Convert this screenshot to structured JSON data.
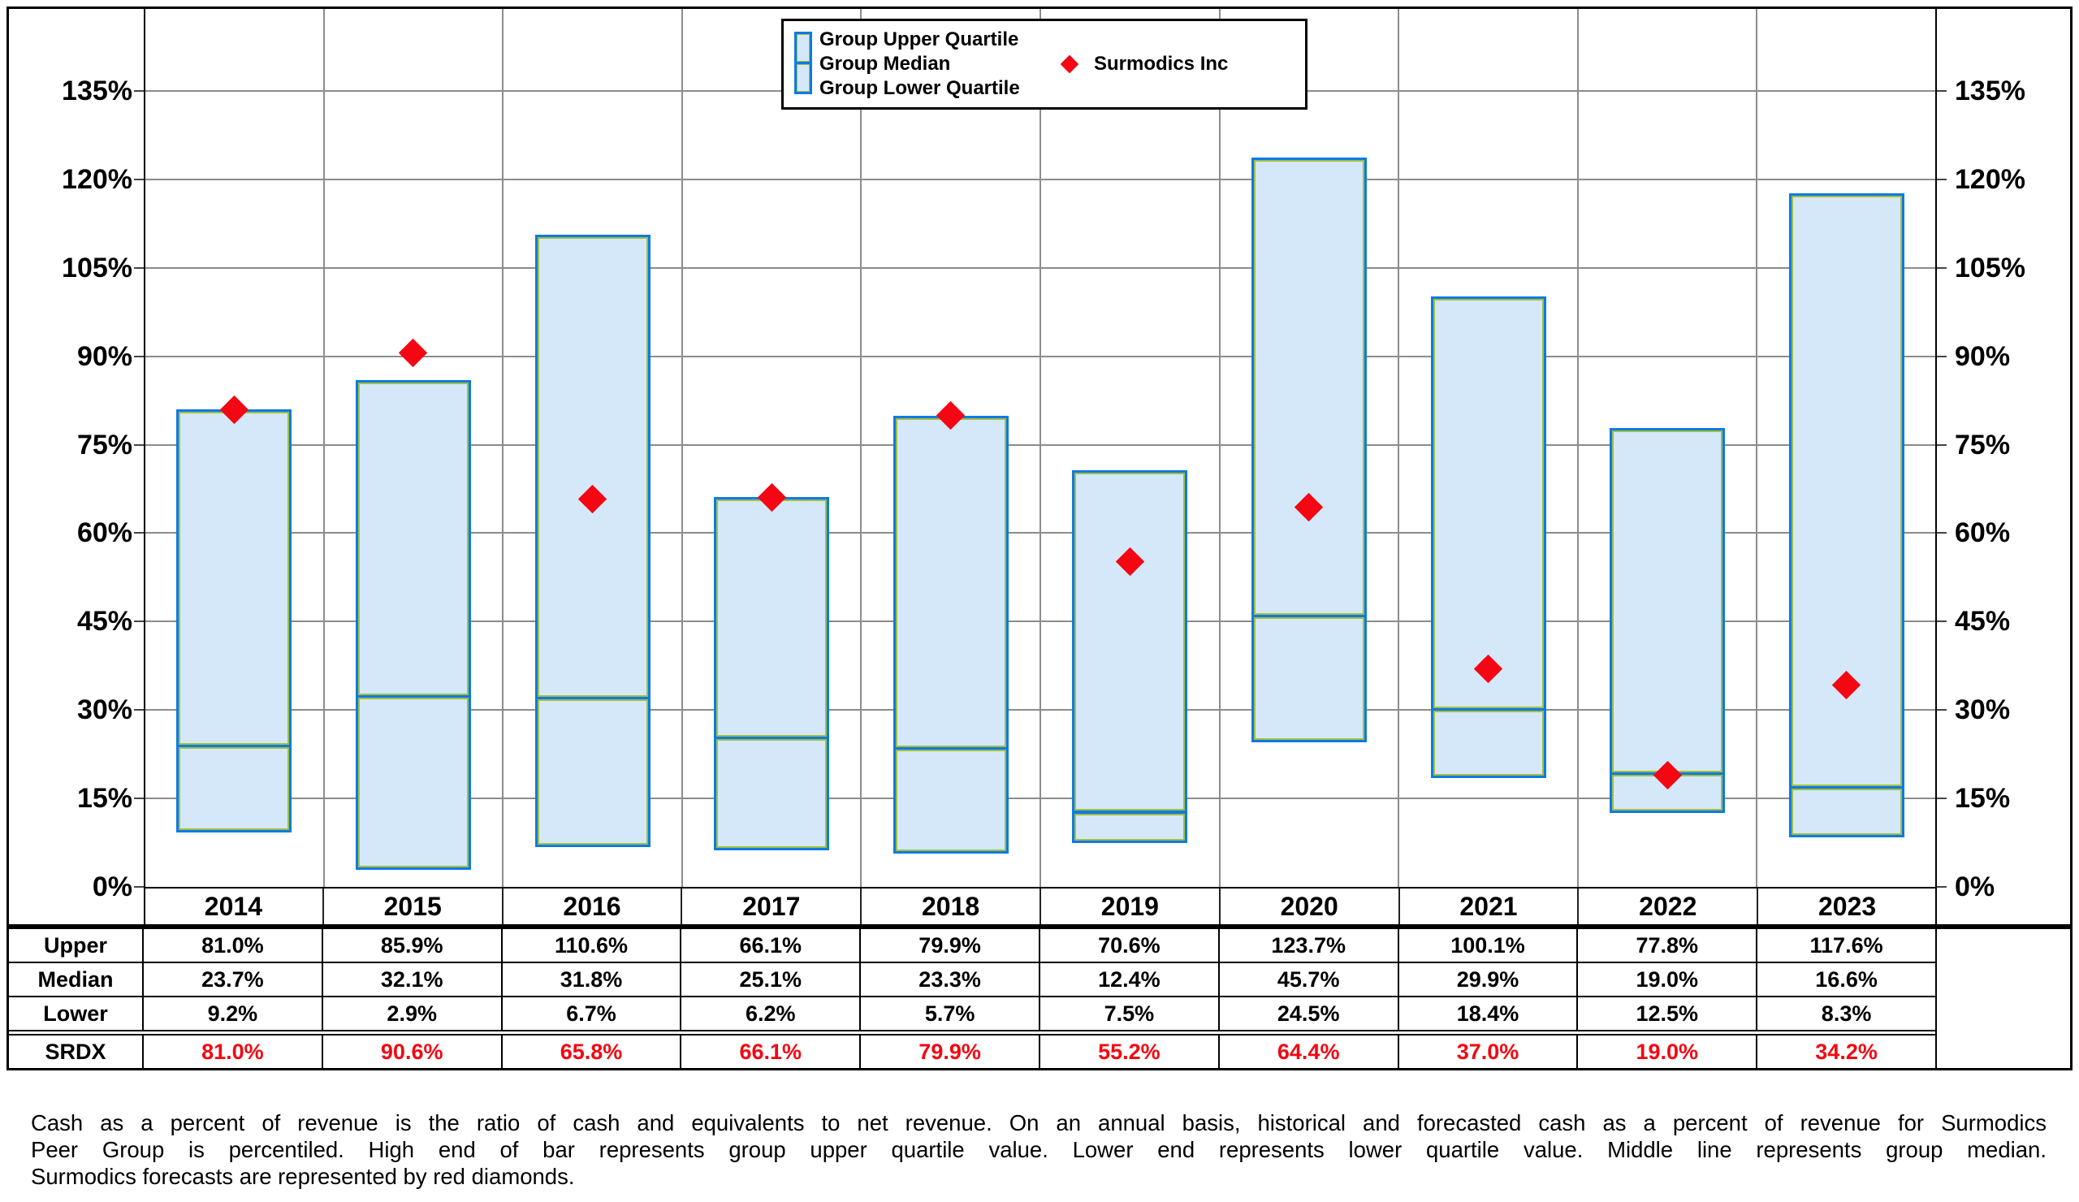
{
  "legend": {
    "items": [
      "Group Upper Quartile",
      "Group Median",
      "Group Lower Quartile"
    ],
    "marker_label": "Surmodics Inc"
  },
  "chart_data": {
    "type": "bar",
    "subtype": "floating-quartile-range-bars-with-markers",
    "categories": [
      "2014",
      "2015",
      "2016",
      "2017",
      "2018",
      "2019",
      "2020",
      "2021",
      "2022",
      "2023"
    ],
    "series": [
      {
        "name": "Group Upper Quartile",
        "values": [
          81.0,
          85.9,
          110.6,
          66.1,
          79.9,
          70.6,
          123.7,
          100.1,
          77.8,
          117.6
        ]
      },
      {
        "name": "Group Median",
        "values": [
          23.7,
          32.1,
          31.8,
          25.1,
          23.3,
          12.4,
          45.7,
          29.9,
          19.0,
          16.6
        ]
      },
      {
        "name": "Group Lower Quartile",
        "values": [
          9.2,
          2.9,
          6.7,
          6.2,
          5.7,
          7.5,
          24.5,
          18.4,
          12.5,
          8.3
        ]
      },
      {
        "name": "Surmodics Inc (SRDX)",
        "values": [
          81.0,
          90.6,
          65.8,
          66.1,
          79.9,
          55.2,
          64.4,
          37.0,
          19.0,
          34.2
        ]
      }
    ],
    "title": "",
    "xlabel": "",
    "ylabel": "",
    "ylim": [
      0,
      148.8
    ],
    "y_tick_values": [
      0,
      15,
      30,
      45,
      60,
      75,
      90,
      105,
      120,
      135
    ],
    "y_tick_labels": [
      "0%",
      "15%",
      "30%",
      "45%",
      "60%",
      "75%",
      "90%",
      "105%",
      "120%",
      "135%"
    ],
    "grid": true,
    "legend_position": "top-center",
    "colors": {
      "bar_fill": "#d5e8f9",
      "bar_border": "#0d7ae4",
      "bar_inner_outline": "#a2bf3f",
      "marker_red": "#f40612",
      "gridline": "#8c8c8c",
      "frame": "#000000"
    }
  },
  "table": {
    "row_labels": [
      "Upper",
      "Median",
      "Lower",
      "SRDX"
    ],
    "rows": [
      [
        "81.0%",
        "85.9%",
        "110.6%",
        "66.1%",
        "79.9%",
        "70.6%",
        "123.7%",
        "100.1%",
        "77.8%",
        "117.6%"
      ],
      [
        "23.7%",
        "32.1%",
        "31.8%",
        "25.1%",
        "23.3%",
        "12.4%",
        "45.7%",
        "29.9%",
        "19.0%",
        "16.6%"
      ],
      [
        "9.2%",
        "2.9%",
        "6.7%",
        "6.2%",
        "5.7%",
        "7.5%",
        "24.5%",
        "18.4%",
        "12.5%",
        "8.3%"
      ],
      [
        "81.0%",
        "90.6%",
        "65.8%",
        "66.1%",
        "79.9%",
        "55.2%",
        "64.4%",
        "37.0%",
        "19.0%",
        "34.2%"
      ]
    ]
  },
  "footnote": {
    "lines": [
      "Cash as a percent of revenue is the ratio of cash and equivalents to net revenue.  On an annual basis, historical and forecasted cash as a percent of revenue for Surmodics",
      "Peer Group is percentiled.  High end of bar represents group upper quartile value.  Lower end represents lower quartile value.  Middle line represents group median.",
      "Surmodics forecasts are represented by red diamonds."
    ]
  }
}
